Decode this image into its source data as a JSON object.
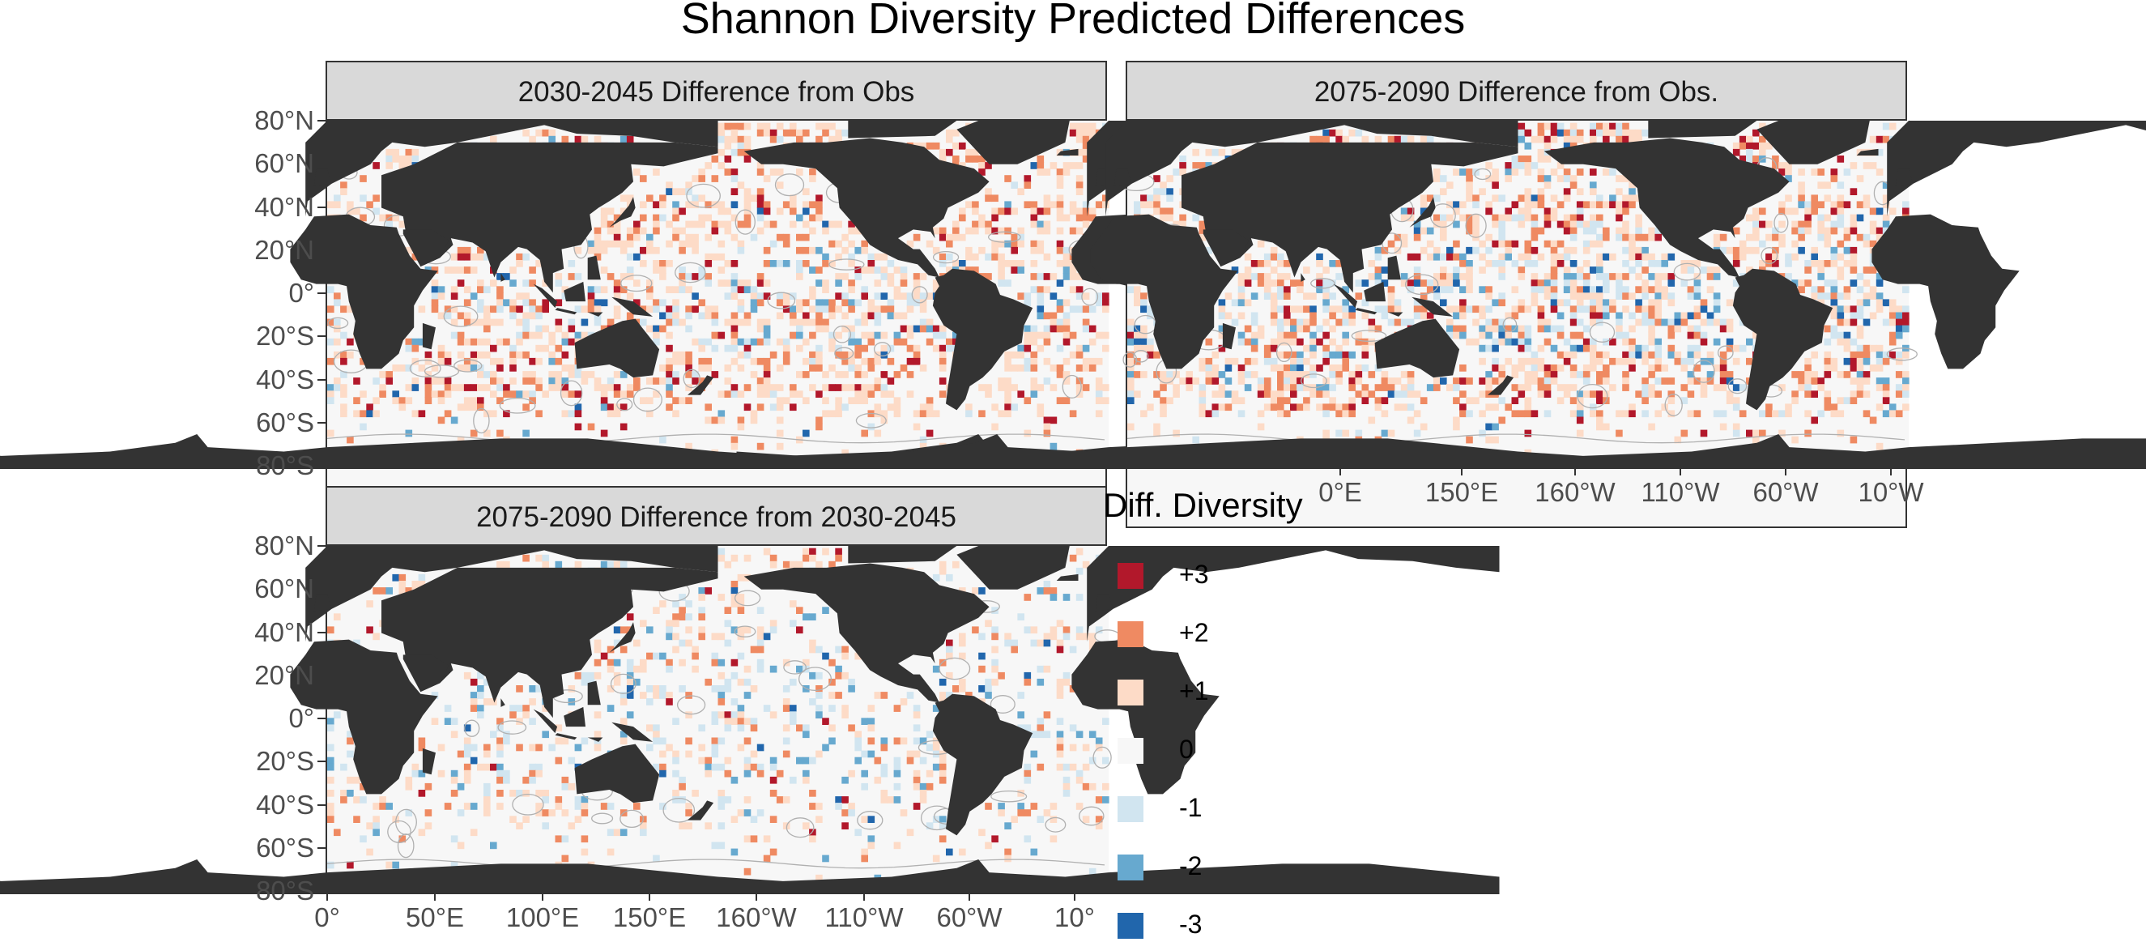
{
  "title": "Shannon Diversity Predicted Differences",
  "panels": [
    {
      "strip": "2030-2045 Difference from Obs",
      "seed": 11,
      "intensity": 0.85,
      "bias": 0.15
    },
    {
      "strip": "2075-2090 Difference from Obs.",
      "seed": 29,
      "intensity": 1.0,
      "bias": 0.05
    },
    {
      "strip": "2075-2090 Difference from 2030-2045",
      "seed": 47,
      "intensity": 0.45,
      "bias": -0.05
    }
  ],
  "y_axis_labels": [
    "80°N",
    "60°N",
    "40°N",
    "20°N",
    "0°",
    "20°S",
    "40°S",
    "60°S",
    "80°S"
  ],
  "x_axis_labels_panel2": [
    "0°E",
    "150°E",
    "160°W",
    "110°W",
    "60°W",
    "10°W"
  ],
  "x_axis_labels_panel3": [
    "0°",
    "50°E",
    "100°E",
    "150°E",
    "160°W",
    "110°W",
    "60°W",
    "10°"
  ],
  "legend": {
    "title": "Diff. Diversity",
    "items": [
      {
        "label": "+3",
        "color": "#b2182b"
      },
      {
        "label": "+2",
        "color": "#ef8a62"
      },
      {
        "label": "+1",
        "color": "#fddbc7"
      },
      {
        "label": "0",
        "color": "#f7f7f7"
      },
      {
        "label": "-1",
        "color": "#d1e5f0"
      },
      {
        "label": "-2",
        "color": "#67a9cf"
      },
      {
        "label": "-3",
        "color": "#2166ac"
      }
    ]
  },
  "colors": {
    "land": "#333333",
    "ocean": "#f7f7f7",
    "contour": "#b0b0b0",
    "strip": "#d9d9d9"
  }
}
